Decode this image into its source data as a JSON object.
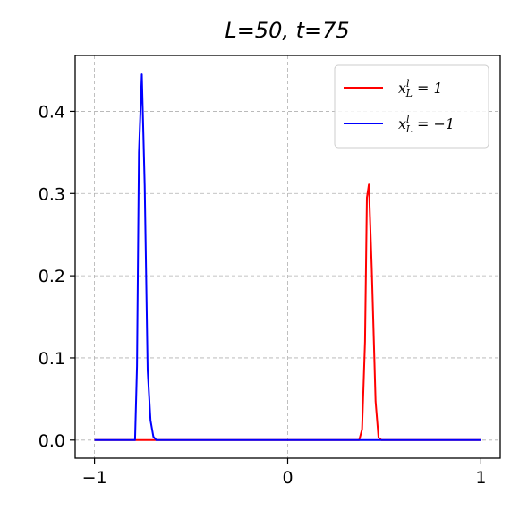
{
  "chart_data": {
    "type": "line",
    "title": "L=50, t=75",
    "xlabel": "",
    "ylabel": "",
    "xlim": [
      -1.1,
      1.1
    ],
    "ylim": [
      -0.022,
      0.468
    ],
    "grid": true,
    "legend_position": "top-right",
    "xticks": [
      -1,
      0,
      1
    ],
    "xtick_labels": [
      "−1",
      "0",
      "1"
    ],
    "yticks": [
      0.0,
      0.1,
      0.2,
      0.3,
      0.4
    ],
    "ytick_labels": [
      "0.0",
      "0.1",
      "0.2",
      "0.3",
      "0.4"
    ],
    "series": [
      {
        "name_parts": {
          "base": "x",
          "sub": "L",
          "sup": "l",
          "rhs": " = 1"
        },
        "color": "#ff0000",
        "x": [
          -1.0,
          0.37,
          0.385,
          0.4,
          0.41,
          0.42,
          0.435,
          0.455,
          0.47,
          0.485,
          1.0
        ],
        "y": [
          0.0,
          0.0,
          0.013,
          0.12,
          0.295,
          0.311,
          0.21,
          0.047,
          0.003,
          0.0,
          0.0
        ]
      },
      {
        "name_parts": {
          "base": "x",
          "sub": "L",
          "sup": "l",
          "rhs": " = −1"
        },
        "color": "#0000ff",
        "x": [
          -1.0,
          -0.79,
          -0.78,
          -0.77,
          -0.755,
          -0.74,
          -0.725,
          -0.71,
          -0.695,
          -0.68,
          1.0
        ],
        "y": [
          0.0,
          0.0,
          0.09,
          0.35,
          0.445,
          0.31,
          0.085,
          0.024,
          0.004,
          0.0,
          0.0
        ]
      }
    ]
  }
}
